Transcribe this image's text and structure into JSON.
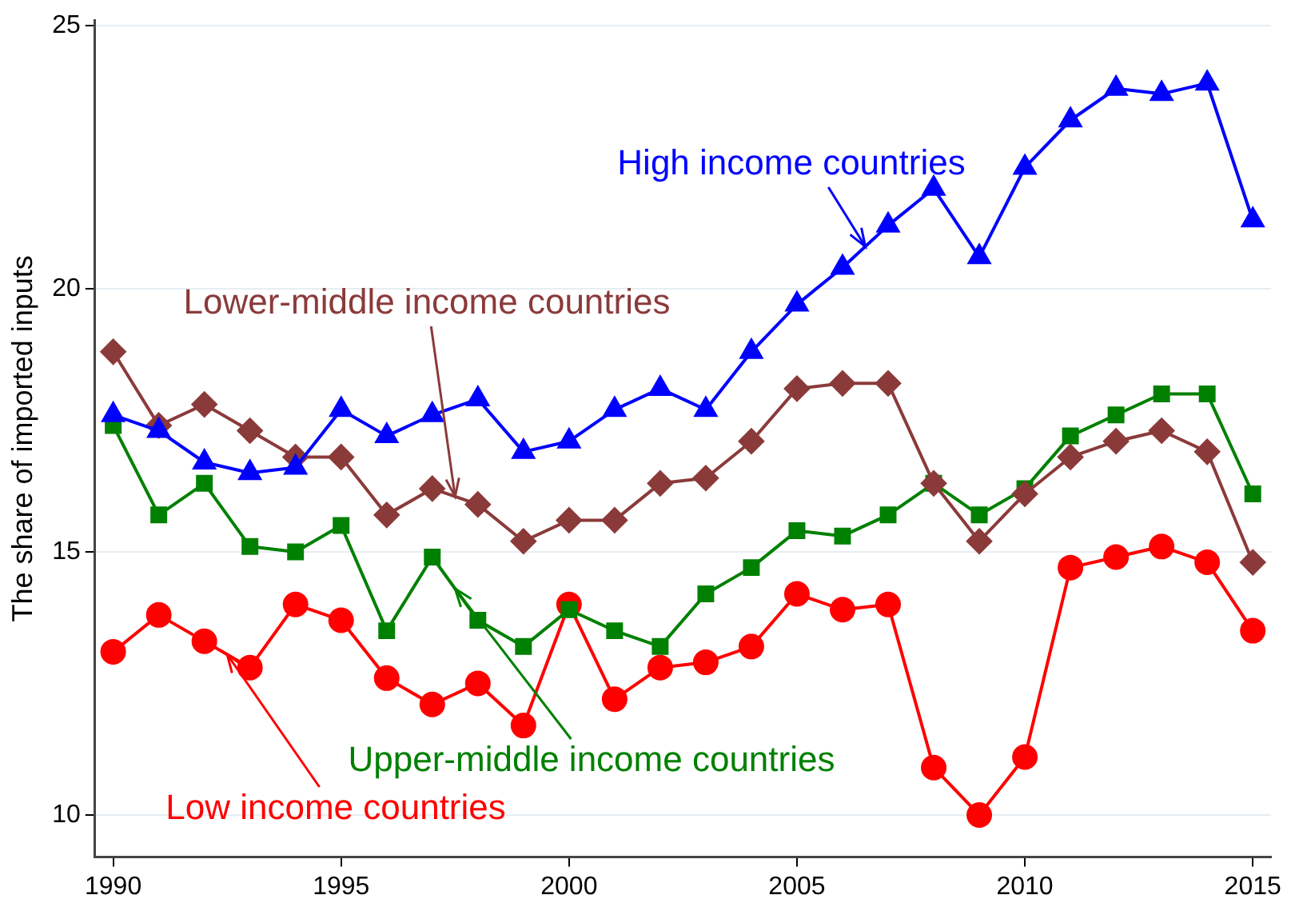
{
  "chart_data": {
    "type": "line",
    "ylabel": "The share of imported inputs",
    "x": [
      1990,
      1991,
      1992,
      1993,
      1994,
      1995,
      1996,
      1997,
      1998,
      1999,
      2000,
      2001,
      2002,
      2003,
      2004,
      2005,
      2006,
      2007,
      2008,
      2009,
      2010,
      2011,
      2012,
      2013,
      2014,
      2015
    ],
    "series": [
      {
        "name": "High income countries",
        "color": "#0000ff",
        "marker": "triangle",
        "values": [
          17.6,
          17.3,
          16.7,
          16.5,
          16.6,
          17.7,
          17.2,
          17.6,
          17.9,
          16.9,
          17.1,
          17.7,
          18.1,
          17.7,
          18.8,
          19.7,
          20.4,
          21.2,
          21.9,
          20.6,
          22.3,
          23.2,
          23.8,
          23.7,
          23.9,
          21.3
        ]
      },
      {
        "name": "Lower-middle income countries",
        "color": "#8b3a3a",
        "marker": "diamond",
        "values": [
          18.8,
          17.4,
          17.8,
          17.3,
          16.8,
          16.8,
          15.7,
          16.2,
          15.9,
          15.2,
          15.6,
          15.6,
          16.3,
          16.4,
          17.1,
          18.1,
          18.2,
          18.2,
          16.3,
          15.2,
          16.1,
          16.8,
          17.1,
          17.3,
          16.9,
          14.8
        ]
      },
      {
        "name": "Upper-middle income countries",
        "color": "#008000",
        "marker": "square",
        "values": [
          17.4,
          15.7,
          16.3,
          15.1,
          15.0,
          15.5,
          13.5,
          14.9,
          13.7,
          13.2,
          13.9,
          13.5,
          13.2,
          14.2,
          14.7,
          15.4,
          15.3,
          15.7,
          16.3,
          15.7,
          16.2,
          17.2,
          17.6,
          18.0,
          18.0,
          16.1
        ]
      },
      {
        "name": "Low income countries",
        "color": "#ff0000",
        "marker": "circle",
        "values": [
          13.1,
          13.8,
          13.3,
          12.8,
          14.0,
          13.7,
          12.6,
          12.1,
          12.5,
          11.7,
          14.0,
          12.2,
          12.8,
          12.9,
          13.2,
          14.2,
          13.9,
          14.0,
          10.9,
          10.0,
          11.1,
          14.7,
          14.9,
          15.1,
          14.8,
          13.5
        ]
      }
    ],
    "xlim": [
      1989.6,
      2015.4
    ],
    "xticks": [
      1990,
      1995,
      2000,
      2005,
      2010,
      2015
    ],
    "ylim": [
      9.2,
      25.1
    ],
    "yticks": [
      10,
      15,
      20,
      25
    ],
    "grid": "y",
    "legend": false,
    "line_style": "solid"
  }
}
